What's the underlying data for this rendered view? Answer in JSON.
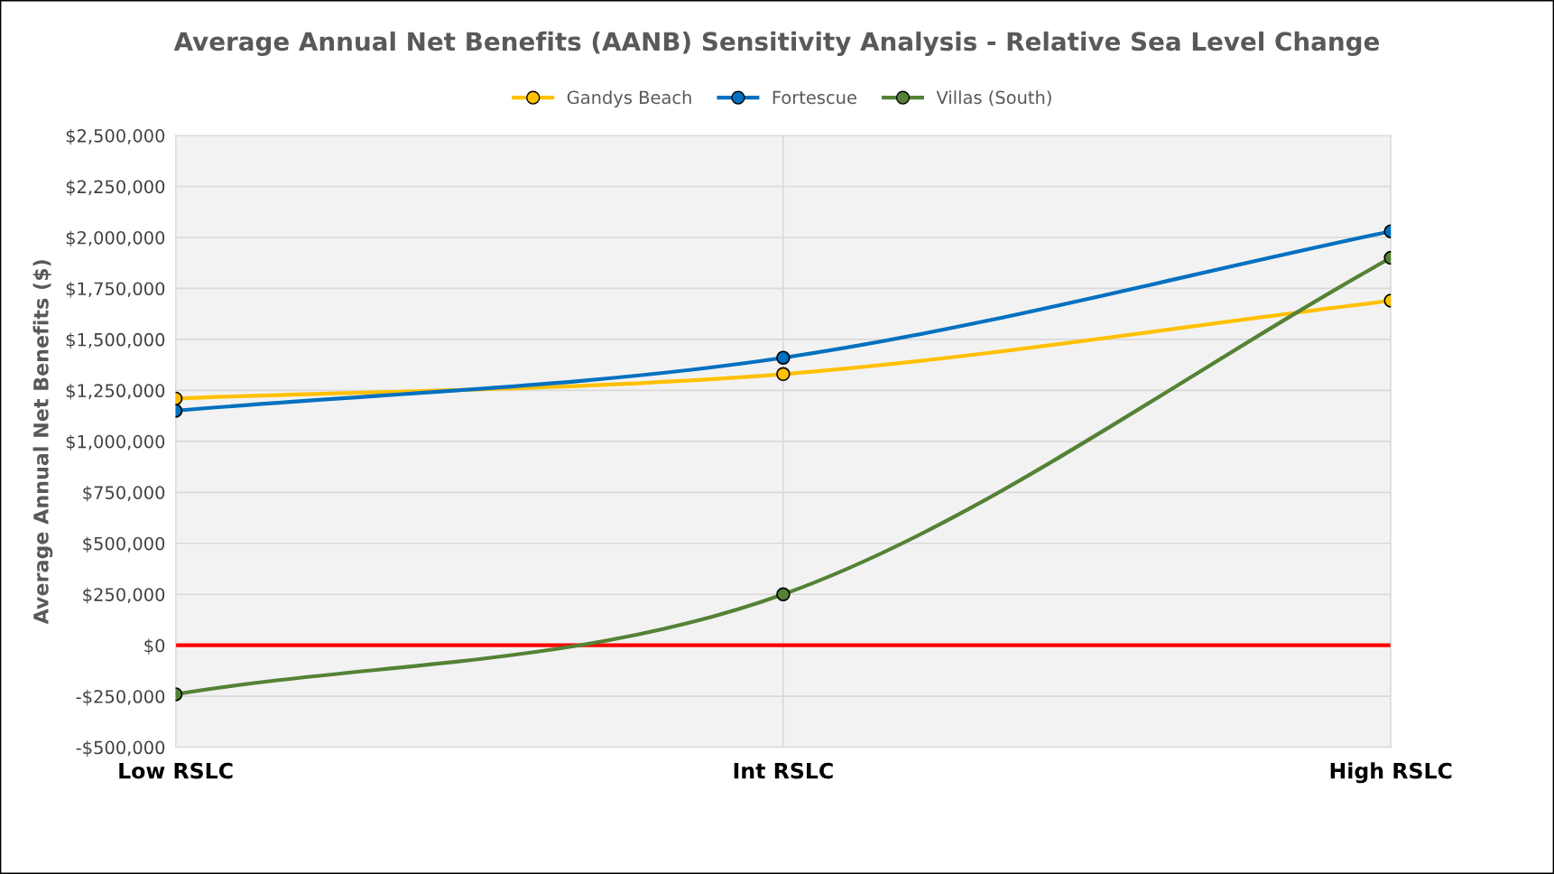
{
  "chart_data": {
    "type": "line",
    "title": "Average Annual Net Benefits (AANB) Sensitivity Analysis - Relative Sea Level Change",
    "ylabel": "Average Annual Net Benefits ($)",
    "categories": [
      "Low RSLC",
      "Int RSLC",
      "High RSLC"
    ],
    "series": [
      {
        "name": "Gandys Beach",
        "color": "#ffc000",
        "values": [
          1210000,
          1330000,
          1690000
        ]
      },
      {
        "name": "Fortescue",
        "color": "#0070c0",
        "values": [
          1150000,
          1410000,
          2030000
        ]
      },
      {
        "name": "Villas (South)",
        "color": "#548235",
        "values": [
          -240000,
          250000,
          1900000
        ]
      }
    ],
    "ylim": [
      -500000,
      2500000
    ],
    "yticks": [
      {
        "value": -500000,
        "label": "-$500,000"
      },
      {
        "value": -250000,
        "label": "-$250,000"
      },
      {
        "value": 0,
        "label": "$0"
      },
      {
        "value": 250000,
        "label": "$250,000"
      },
      {
        "value": 500000,
        "label": "$500,000"
      },
      {
        "value": 750000,
        "label": "$750,000"
      },
      {
        "value": 1000000,
        "label": "$1,000,000"
      },
      {
        "value": 1250000,
        "label": "$1,250,000"
      },
      {
        "value": 1500000,
        "label": "$1,500,000"
      },
      {
        "value": 1750000,
        "label": "$1,750,000"
      },
      {
        "value": 2000000,
        "label": "$2,000,000"
      },
      {
        "value": 2250000,
        "label": "$2,250,000"
      },
      {
        "value": 2500000,
        "label": "$2,500,000"
      }
    ],
    "ref_lines": [
      {
        "axis": "y",
        "value": 0,
        "color": "#ff0000",
        "line_style": "solid"
      }
    ],
    "grid": true,
    "legend": "top",
    "marker": "circle",
    "line_style": "solid"
  }
}
